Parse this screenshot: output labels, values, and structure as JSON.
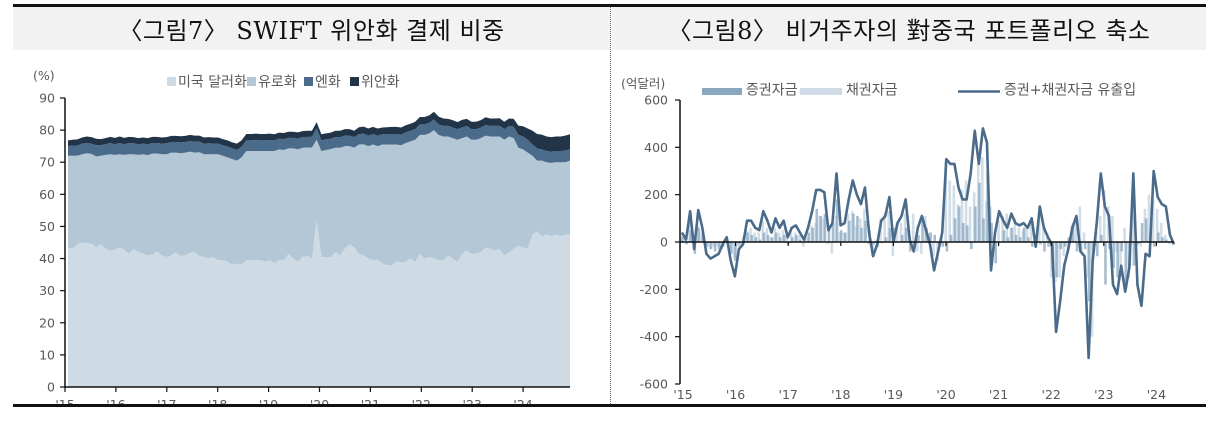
{
  "figures": {
    "left_title": "〈그림7〉 SWIFT 위안화 결제 비중",
    "right_title": "〈그림8〉 비거주자의 對중국 포트폴리오 축소"
  },
  "chart_data": [
    {
      "type": "area",
      "stacked": true,
      "title": "〈그림7〉 SWIFT 위안화 결제 비중",
      "ylabel": "(%)",
      "ylim": [
        0,
        90
      ],
      "yticks": [
        0,
        10,
        20,
        30,
        40,
        50,
        60,
        70,
        80,
        90
      ],
      "xticks": [
        "'15",
        "'16",
        "'17",
        "'18",
        "'19",
        "'20",
        "'21",
        "'22",
        "'23",
        "'24"
      ],
      "legend": [
        "미국 달러화",
        "유로화",
        "엔화",
        "위안화"
      ],
      "colors": [
        "#cfdbe4",
        "#b3c7d6",
        "#4a6b8a",
        "#223548"
      ],
      "x_start": 2015.0,
      "x_step_years": 0.0833,
      "series": [
        {
          "name": "미국 달러화",
          "values": [
            43.5,
            43,
            44.5,
            45,
            44.8,
            44.6,
            43.5,
            44.5,
            43,
            42.5,
            42.8,
            43.5,
            42.8,
            41.5,
            43,
            42,
            41.5,
            41,
            41.2,
            42.2,
            41,
            40.5,
            41,
            42,
            40.8,
            41,
            41.8,
            42,
            40.8,
            40.5,
            40,
            40.5,
            39.5,
            39.5,
            39,
            38,
            38.5,
            38,
            39.5,
            39.5,
            39.5,
            39.5,
            39,
            39.5,
            38.5,
            39.5,
            39.5,
            41.5,
            40,
            39,
            40.5,
            40.8,
            40,
            52,
            40.5,
            40.5,
            40.5,
            42,
            41,
            43,
            44.5,
            43.5,
            41.5,
            41,
            40,
            39.5,
            39.5,
            38.5,
            38,
            38,
            39,
            38.8,
            39,
            40,
            39,
            41.5,
            40,
            40.5,
            40,
            39.5,
            39.5,
            41,
            40,
            39,
            41.5,
            42.5,
            41.5,
            41.5,
            42,
            43.5,
            43,
            42.5,
            43,
            41,
            42,
            43,
            44,
            43.5,
            43,
            47.5,
            48.5,
            47,
            47.5,
            47,
            47.5,
            47,
            47.5,
            47.5
          ]
        },
        {
          "name": "유로화",
          "values": [
            28.5,
            29,
            27.5,
            27.5,
            28,
            28,
            28.3,
            27.5,
            29.3,
            30,
            29.5,
            29,
            29.5,
            31,
            29.5,
            30.3,
            31,
            31.2,
            31.5,
            30.5,
            31.5,
            32,
            32,
            31,
            32,
            32,
            31.5,
            31,
            32.3,
            32,
            32.5,
            32,
            33,
            32.5,
            32.5,
            33,
            32,
            33.5,
            34,
            34,
            34,
            34,
            34.5,
            34,
            35,
            34.5,
            34.3,
            32.8,
            34.3,
            35,
            34,
            33.8,
            34.6,
            25,
            33,
            33.3,
            33.6,
            32.5,
            33.5,
            32,
            30.5,
            31,
            34,
            34.6,
            35,
            36,
            35.5,
            37,
            37.5,
            37.5,
            36.5,
            36.5,
            37,
            36.5,
            38,
            37,
            38.5,
            38.5,
            40,
            39,
            38.5,
            37,
            37.5,
            38,
            36,
            35.5,
            35.5,
            35.5,
            35.5,
            34.8,
            35,
            35.5,
            35,
            36,
            36,
            34.5,
            30.5,
            30.5,
            30,
            24.5,
            22,
            23.5,
            22.5,
            22.8,
            22.5,
            23,
            22.5,
            23
          ]
        },
        {
          "name": "엔화",
          "values": [
            3,
            3.2,
            3.2,
            3.3,
            3.2,
            3.2,
            3.5,
            3.3,
            3.3,
            3.5,
            3.3,
            3.5,
            3.3,
            3.5,
            3.4,
            3.3,
            3.3,
            3.4,
            3.3,
            3.3,
            3.3,
            3.4,
            3.3,
            3.3,
            3.4,
            3.3,
            3.3,
            3.4,
            3.3,
            3.3,
            3.4,
            3.3,
            3.3,
            3.3,
            3.4,
            3.3,
            3.4,
            3.3,
            3.3,
            3.3,
            3.4,
            3.3,
            3.3,
            3.4,
            3.3,
            3.3,
            3.4,
            3.3,
            3.3,
            3.4,
            3.3,
            3.3,
            3.3,
            3.6,
            3.3,
            3.3,
            3.2,
            3.3,
            3.3,
            3.3,
            3.3,
            3.3,
            3.2,
            3.3,
            3.3,
            3.3,
            3.3,
            3.2,
            3.3,
            3.3,
            3.3,
            3.3,
            3.3,
            3.3,
            3.3,
            3.3,
            3.3,
            3.3,
            3.3,
            3.3,
            3.3,
            3.3,
            3.3,
            3.3,
            3.3,
            3.3,
            3.3,
            3.3,
            3.3,
            3.3,
            3.3,
            3.3,
            3.3,
            3.3,
            3.3,
            3.5,
            4,
            4,
            4,
            3.5,
            3.8,
            3.5,
            3.5,
            3.5,
            3.5,
            3.5,
            3.6,
            3.5
          ]
        },
        {
          "name": "위안화",
          "values": [
            1.8,
            1.8,
            1.9,
            1.9,
            2,
            2,
            2,
            1.9,
            1.9,
            1.9,
            2,
            2,
            2,
            1.9,
            1.9,
            1.9,
            1.9,
            1.9,
            1.9,
            1.9,
            1.9,
            1.9,
            1.9,
            1.9,
            1.9,
            1.9,
            1.9,
            1.9,
            1.9,
            1.9,
            1.9,
            1.9,
            1.9,
            1.9,
            1.9,
            1.9,
            1.9,
            2,
            2,
            2,
            2,
            2,
            2,
            2,
            1.9,
            1.9,
            1.9,
            1.9,
            1.9,
            1.9,
            1.9,
            1.9,
            1.9,
            1.9,
            1.9,
            1.9,
            1.9,
            2,
            2,
            2,
            2,
            2,
            2.2,
            2.2,
            2.2,
            2.2,
            2.2,
            2.1,
            2.1,
            2.2,
            2.2,
            2.2,
            2.2,
            2.2,
            2.3,
            2.3,
            2.3,
            2.3,
            2.4,
            2.4,
            2.3,
            2.2,
            2.3,
            2.2,
            2.4,
            2.2,
            2.3,
            2.3,
            2.3,
            2.4,
            2.3,
            2.3,
            2.4,
            2.3,
            2.3,
            2.5,
            2.9,
            3.2,
            3.5,
            4.3,
            4.5,
            4.6,
            4.5,
            4.5,
            4.5,
            4.5,
            4.7,
            4.7
          ]
        }
      ]
    },
    {
      "type": "bar+line",
      "title": "〈그림8〉 비거주자의 對중국 포트폴리오 축소",
      "ylabel": "(억달러)",
      "ylim": [
        -600,
        600
      ],
      "yticks": [
        600,
        400,
        200,
        0,
        -200,
        -400,
        -600
      ],
      "xticks": [
        "'15",
        "'16",
        "'17",
        "'18",
        "'19",
        "'20",
        "'21",
        "'22",
        "'23",
        "'24"
      ],
      "legend": [
        "증권자금",
        "채권자금",
        "증권+채권자금 유출입"
      ],
      "colors": [
        "#8aa7c0",
        "#cfdbe6",
        "#4a6b8a"
      ],
      "x_start": 2015.0,
      "x_step_years": 0.0833,
      "series": [
        {
          "name": "증권자금",
          "type": "bar",
          "values": [
            20,
            -10,
            50,
            -50,
            60,
            30,
            -20,
            -30,
            -40,
            -30,
            -20,
            10,
            -50,
            -80,
            -10,
            20,
            40,
            30,
            20,
            10,
            40,
            30,
            20,
            40,
            20,
            30,
            -10,
            20,
            30,
            10,
            20,
            40,
            60,
            140,
            110,
            120,
            60,
            80,
            180,
            50,
            40,
            90,
            120,
            110,
            60,
            90,
            50,
            -10,
            -20,
            -5,
            20,
            60,
            60,
            0,
            30,
            60,
            -40,
            -10,
            30,
            90,
            60,
            40,
            30,
            -10,
            -20,
            -40,
            30,
            100,
            150,
            80,
            70,
            -30,
            150,
            250,
            100,
            300,
            80,
            -90,
            0,
            50,
            20,
            60,
            30,
            20,
            60,
            20,
            -20,
            20,
            -10,
            -40,
            -20,
            -120,
            -150,
            -30,
            -20,
            20,
            80,
            -40,
            -40,
            -30,
            -250,
            -50,
            -60,
            30,
            -180,
            -30,
            -110,
            -150,
            -40,
            -200,
            -100,
            -100,
            -10,
            80,
            100,
            20,
            -20,
            40,
            20,
            10
          ]
        },
        {
          "name": "채권자금",
          "type": "bar",
          "values": [
            30,
            20,
            80,
            20,
            70,
            40,
            -40,
            -30,
            -20,
            -20,
            -30,
            10,
            -40,
            -70,
            -20,
            -10,
            50,
            60,
            40,
            40,
            90,
            60,
            20,
            60,
            40,
            50,
            30,
            40,
            40,
            30,
            -20,
            20,
            70,
            80,
            110,
            100,
            -10,
            -50,
            110,
            40,
            40,
            120,
            130,
            70,
            100,
            140,
            -10,
            -60,
            10,
            100,
            120,
            130,
            -60,
            80,
            80,
            120,
            50,
            120,
            -40,
            -50,
            110,
            40,
            -60,
            -80,
            30,
            340,
            260,
            240,
            160,
            220,
            260,
            150,
            210,
            330,
            360,
            170,
            150,
            20,
            90,
            110,
            120,
            60,
            100,
            60,
            50,
            60,
            80,
            -20,
            110,
            60,
            40,
            -150,
            -170,
            -150,
            -60,
            -50,
            70,
            100,
            150,
            40,
            -150,
            -400,
            40,
            110,
            220,
            150,
            110,
            -40,
            -100,
            60,
            -150,
            130,
            -20,
            -20,
            140,
            200,
            180,
            140,
            80,
            30,
            -10
          ]
        },
        {
          "name": "증권+채권자금 유출입",
          "type": "line",
          "values": [
            40,
            10,
            130,
            -30,
            135,
            60,
            -50,
            -70,
            -60,
            -50,
            -10,
            20,
            -80,
            -145,
            -30,
            -10,
            90,
            90,
            60,
            50,
            130,
            90,
            40,
            100,
            60,
            90,
            20,
            60,
            70,
            40,
            10,
            60,
            130,
            220,
            220,
            210,
            50,
            80,
            290,
            70,
            80,
            180,
            260,
            200,
            160,
            230,
            40,
            -60,
            -10,
            90,
            110,
            190,
            0,
            80,
            110,
            180,
            10,
            -40,
            60,
            110,
            50,
            -10,
            -120,
            -40,
            40,
            350,
            330,
            330,
            230,
            180,
            180,
            290,
            470,
            330,
            480,
            420,
            -120,
            40,
            130,
            90,
            60,
            120,
            80,
            70,
            80,
            60,
            100,
            -20,
            150,
            60,
            20,
            -10,
            -380,
            -250,
            -100,
            -30,
            60,
            110,
            -40,
            -60,
            -490,
            -80,
            80,
            290,
            150,
            110,
            -180,
            -220,
            -100,
            -210,
            -110,
            290,
            -180,
            -270,
            -50,
            -60,
            300,
            190,
            160,
            150,
            30,
            -10
          ]
        }
      ]
    }
  ]
}
